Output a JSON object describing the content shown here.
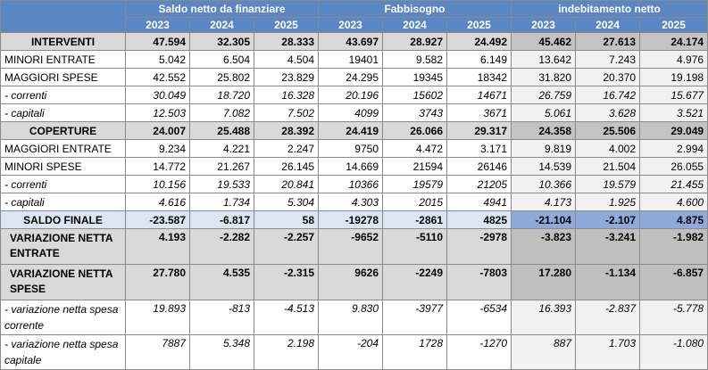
{
  "groups": [
    "Saldo netto da finanziare",
    "Fabbisogno",
    "indebitamento netto"
  ],
  "years": [
    "2023",
    "2024",
    "2025",
    "2023",
    "2024",
    "2025",
    "2023",
    "2024",
    "2025"
  ],
  "rows": [
    {
      "label": "INTERVENTI",
      "values": [
        "47.594",
        "32.305",
        "28.333",
        "43.697",
        "28.927",
        "24.492",
        "45.462",
        "27.613",
        "24.174"
      ]
    },
    {
      "label": "MINORI ENTRATE",
      "values": [
        "5.042",
        "6.504",
        "4.504",
        "19401",
        "9.582",
        "6.149",
        "13.642",
        "7.243",
        "4.976"
      ]
    },
    {
      "label": "MAGGIORI SPESE",
      "values": [
        "42.552",
        "25.802",
        "23.829",
        "24.295",
        "19345",
        "18342",
        "31.820",
        "20.370",
        "19.198"
      ]
    },
    {
      "label": " - correnti",
      "values": [
        "30.049",
        "18.720",
        "16.328",
        "20.196",
        "15602",
        "14671",
        "26.759",
        "16.742",
        "15.677"
      ]
    },
    {
      "label": " - capitali",
      "values": [
        "12.503",
        "7.082",
        "7.502",
        "4099",
        "3743",
        "3671",
        "5.061",
        "3.628",
        "3.521"
      ]
    },
    {
      "label": "COPERTURE",
      "values": [
        "24.007",
        "25.488",
        "28.392",
        "24.419",
        "26.066",
        "29.317",
        "24.358",
        "25.506",
        "29.049"
      ]
    },
    {
      "label": "MAGGIORI ENTRATE",
      "values": [
        "9.234",
        "4.221",
        "2.247",
        "9750",
        "4.472",
        "3.171",
        "9.819",
        "4.002",
        "2.994"
      ]
    },
    {
      "label": "MINORI SPESE",
      "values": [
        "14.772",
        "21.267",
        "26.145",
        "14.669",
        "21594",
        "26146",
        "14.539",
        "21.504",
        "26.055"
      ]
    },
    {
      "label": " - correnti",
      "values": [
        "10.156",
        "19.533",
        "20.841",
        "10366",
        "19579",
        "21205",
        "10.366",
        "19.579",
        "21.455"
      ]
    },
    {
      "label": " - capitali",
      "values": [
        "4.616",
        "1.734",
        "5.304",
        "4.303",
        "2015",
        "4941",
        "4.173",
        "1.925",
        "4.600"
      ]
    },
    {
      "label": "SALDO FINALE",
      "values": [
        "-23.587",
        "-6.817",
        "58",
        "-19278",
        "-2861",
        "4825",
        "-21.104",
        "-2.107",
        "4.875"
      ]
    },
    {
      "label": "VARIAZIONE NETTA ENTRATE",
      "values": [
        "4.193",
        "-2.282",
        "-2.257",
        "-9652",
        "-5110",
        "-2978",
        "-3.823",
        "-3.241",
        "-1.982"
      ]
    },
    {
      "label": "VARIAZIONE NETTA SPESE",
      "values": [
        "27.780",
        "4.535",
        "-2.315",
        "9626",
        "-2249",
        "-7803",
        "17.280",
        "-1.134",
        "-6.857"
      ]
    },
    {
      "label": "- variazione netta spesa corrente",
      "values": [
        "19.893",
        "-813",
        "-4.513",
        "9.830",
        "-3977",
        "-6534",
        "16.393",
        "-2.837",
        "-5.778"
      ]
    },
    {
      "label": "- variazione netta spesa capitale",
      "values": [
        "7887",
        "5.348",
        "2.198",
        "-204",
        "1728",
        "-1270",
        "887",
        "1.703",
        "-1.080"
      ]
    }
  ]
}
